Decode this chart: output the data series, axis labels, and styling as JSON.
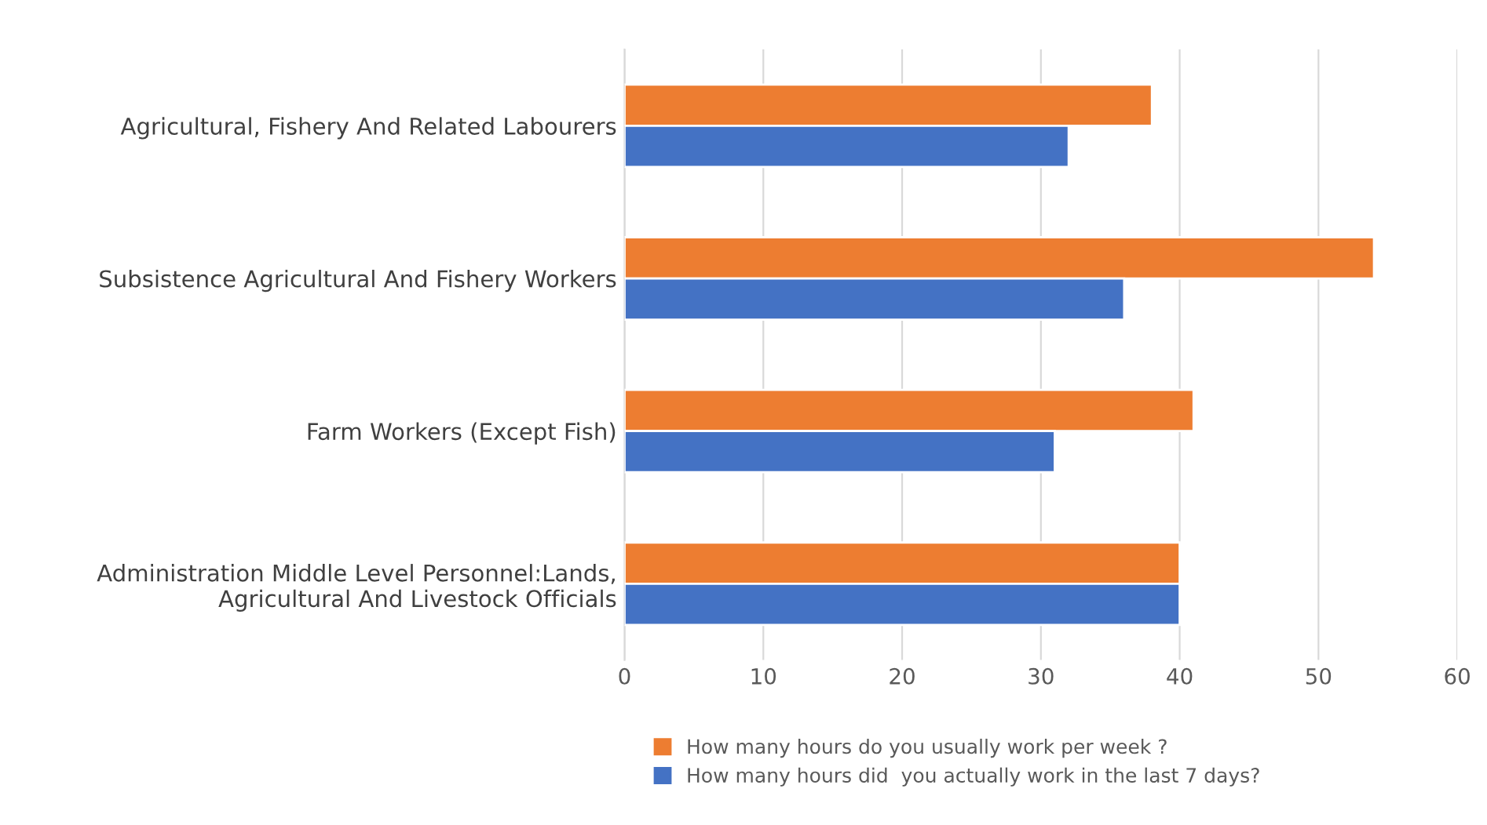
{
  "chart_data": {
    "type": "bar",
    "orientation": "horizontal",
    "categories": [
      "Agricultural, Fishery And Related Labourers",
      "Subsistence Agricultural And Fishery Workers",
      "Farm Workers (Except Fish)",
      "Administration Middle Level Personnel:Lands,\nAgricultural And Livestock Officials"
    ],
    "series": [
      {
        "name": "How many hours do you usually work per week ?",
        "color": "#ed7d31",
        "values": [
          38,
          54,
          41,
          40
        ]
      },
      {
        "name": "How many hours did  you actually work in the last 7 days?",
        "color": "#4472c4",
        "values": [
          32,
          36,
          31,
          40
        ]
      }
    ],
    "xlim": [
      0,
      60
    ],
    "xticks": [
      0,
      10,
      20,
      30,
      40,
      50,
      60
    ],
    "grid": "x",
    "legend": "bottom"
  }
}
